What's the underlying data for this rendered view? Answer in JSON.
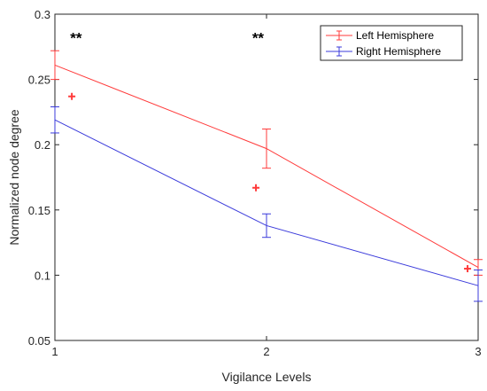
{
  "chart_data": {
    "type": "line",
    "xlabel": "Vigilance Levels",
    "ylabel": "Normalized node degree",
    "x": [
      1,
      2,
      3
    ],
    "x_ticks": [
      "1",
      "2",
      "3"
    ],
    "xlim": [
      1,
      3
    ],
    "y_ticks": [
      "0.05",
      "0.1",
      "0.15",
      "0.2",
      "0.25",
      "0.3"
    ],
    "ylim": [
      0.05,
      0.3
    ],
    "grid": false,
    "legend_position": "top-right",
    "series": [
      {
        "name": "Left Hemisphere",
        "color": "#ff3b3b",
        "values": [
          0.261,
          0.197,
          0.106
        ],
        "errors": [
          0.011,
          0.015,
          0.006
        ],
        "outliers": [
          {
            "x": 1.08,
            "y": 0.237
          },
          {
            "x": 1.95,
            "y": 0.167
          },
          {
            "x": 2.95,
            "y": 0.105
          }
        ]
      },
      {
        "name": "Right Hemisphere",
        "color": "#3b3bdb",
        "values": [
          0.219,
          0.138,
          0.092
        ],
        "errors": [
          0.01,
          0.009,
          0.012
        ],
        "outliers": []
      }
    ],
    "annotations": [
      {
        "text": "**",
        "x": 1.1,
        "y": 0.282
      },
      {
        "text": "**",
        "x": 1.96,
        "y": 0.282
      }
    ]
  }
}
